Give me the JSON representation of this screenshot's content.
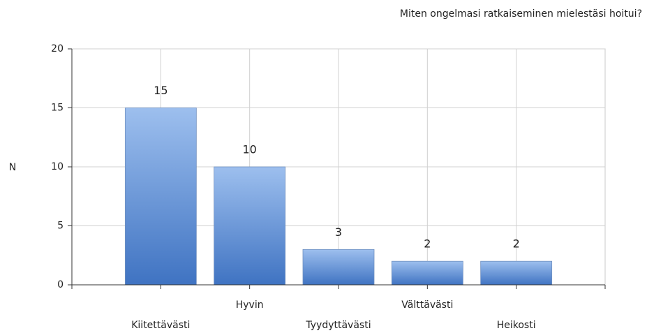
{
  "chart_data": {
    "type": "bar",
    "title": "Miten ongelmasi ratkaiseminen mielestäsi hoitui?",
    "y_label": "N",
    "categories": [
      "Kiitettävästi",
      "Hyvin",
      "Tyydyttävästi",
      "Välttävästi",
      "Heikosti"
    ],
    "values": [
      15,
      10,
      3,
      2,
      2
    ],
    "color": "#3f73c2",
    "ylim": [
      0,
      20
    ],
    "yticks": [
      0,
      5,
      10,
      15,
      20
    ],
    "grid": true
  }
}
